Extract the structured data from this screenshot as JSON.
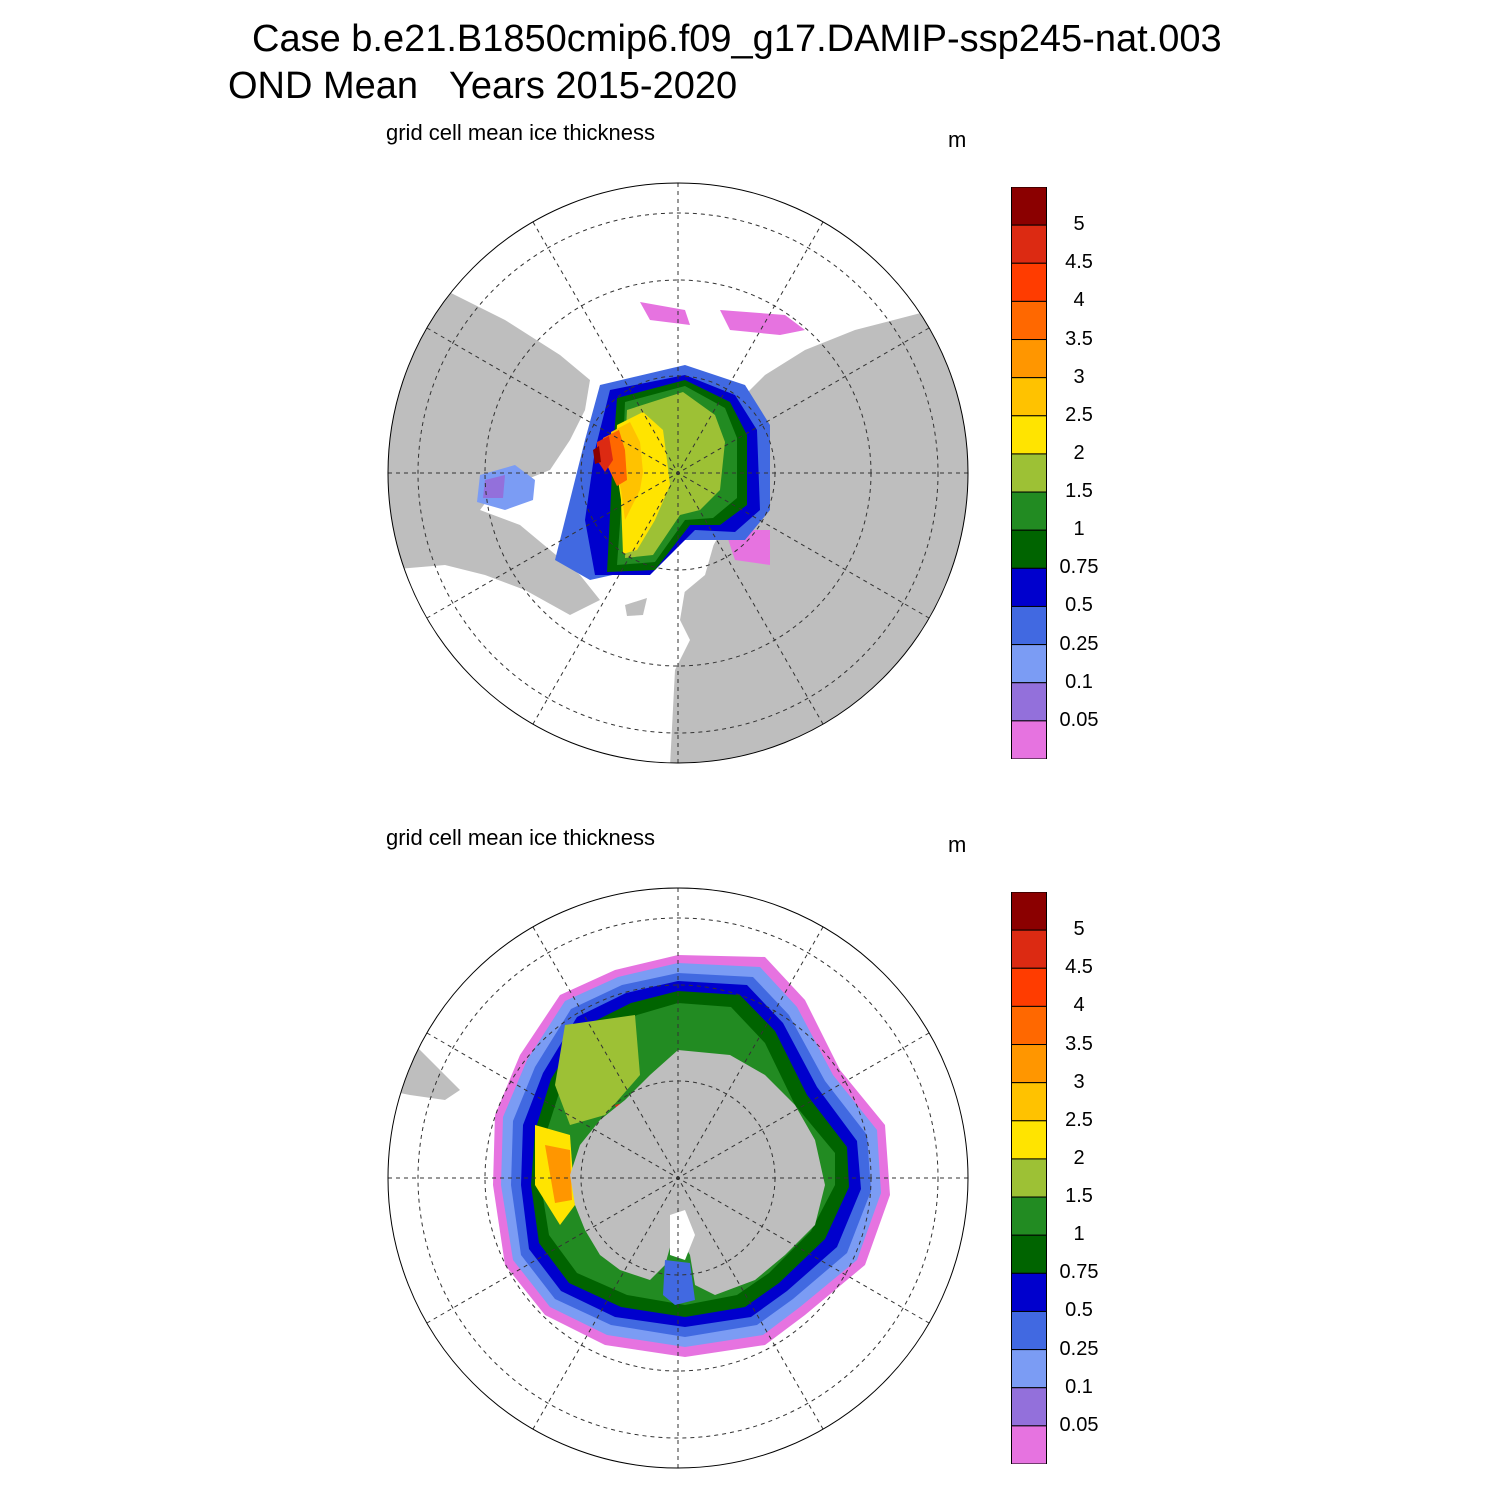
{
  "header": {
    "line1": "Case b.e21.B1850cmip6.f09_g17.DAMIP-ssp245-nat.003",
    "line2": "OND Mean   Years 2015-2020"
  },
  "panels": [
    {
      "id": "north",
      "title": "grid cell mean ice thickness",
      "units": "m"
    },
    {
      "id": "south",
      "title": "grid cell mean ice thickness",
      "units": "m"
    }
  ],
  "colorbar": {
    "labels": [
      "5",
      "4.5",
      "4",
      "3.5",
      "3",
      "2.5",
      "2",
      "1.5",
      "1",
      "0.75",
      "0.5",
      "0.25",
      "0.1",
      "0.05"
    ],
    "colors": [
      "#8b0000",
      "#dc2a12",
      "#ff3c00",
      "#ff6800",
      "#ff9600",
      "#ffc200",
      "#ffe400",
      "#9dc135",
      "#228b22",
      "#006400",
      "#0000cd",
      "#4169e1",
      "#7b9cf4",
      "#9370db",
      "#e673e0"
    ]
  },
  "map_colors": {
    "land": "#bebebe",
    "ocean": "#ffffff"
  }
}
